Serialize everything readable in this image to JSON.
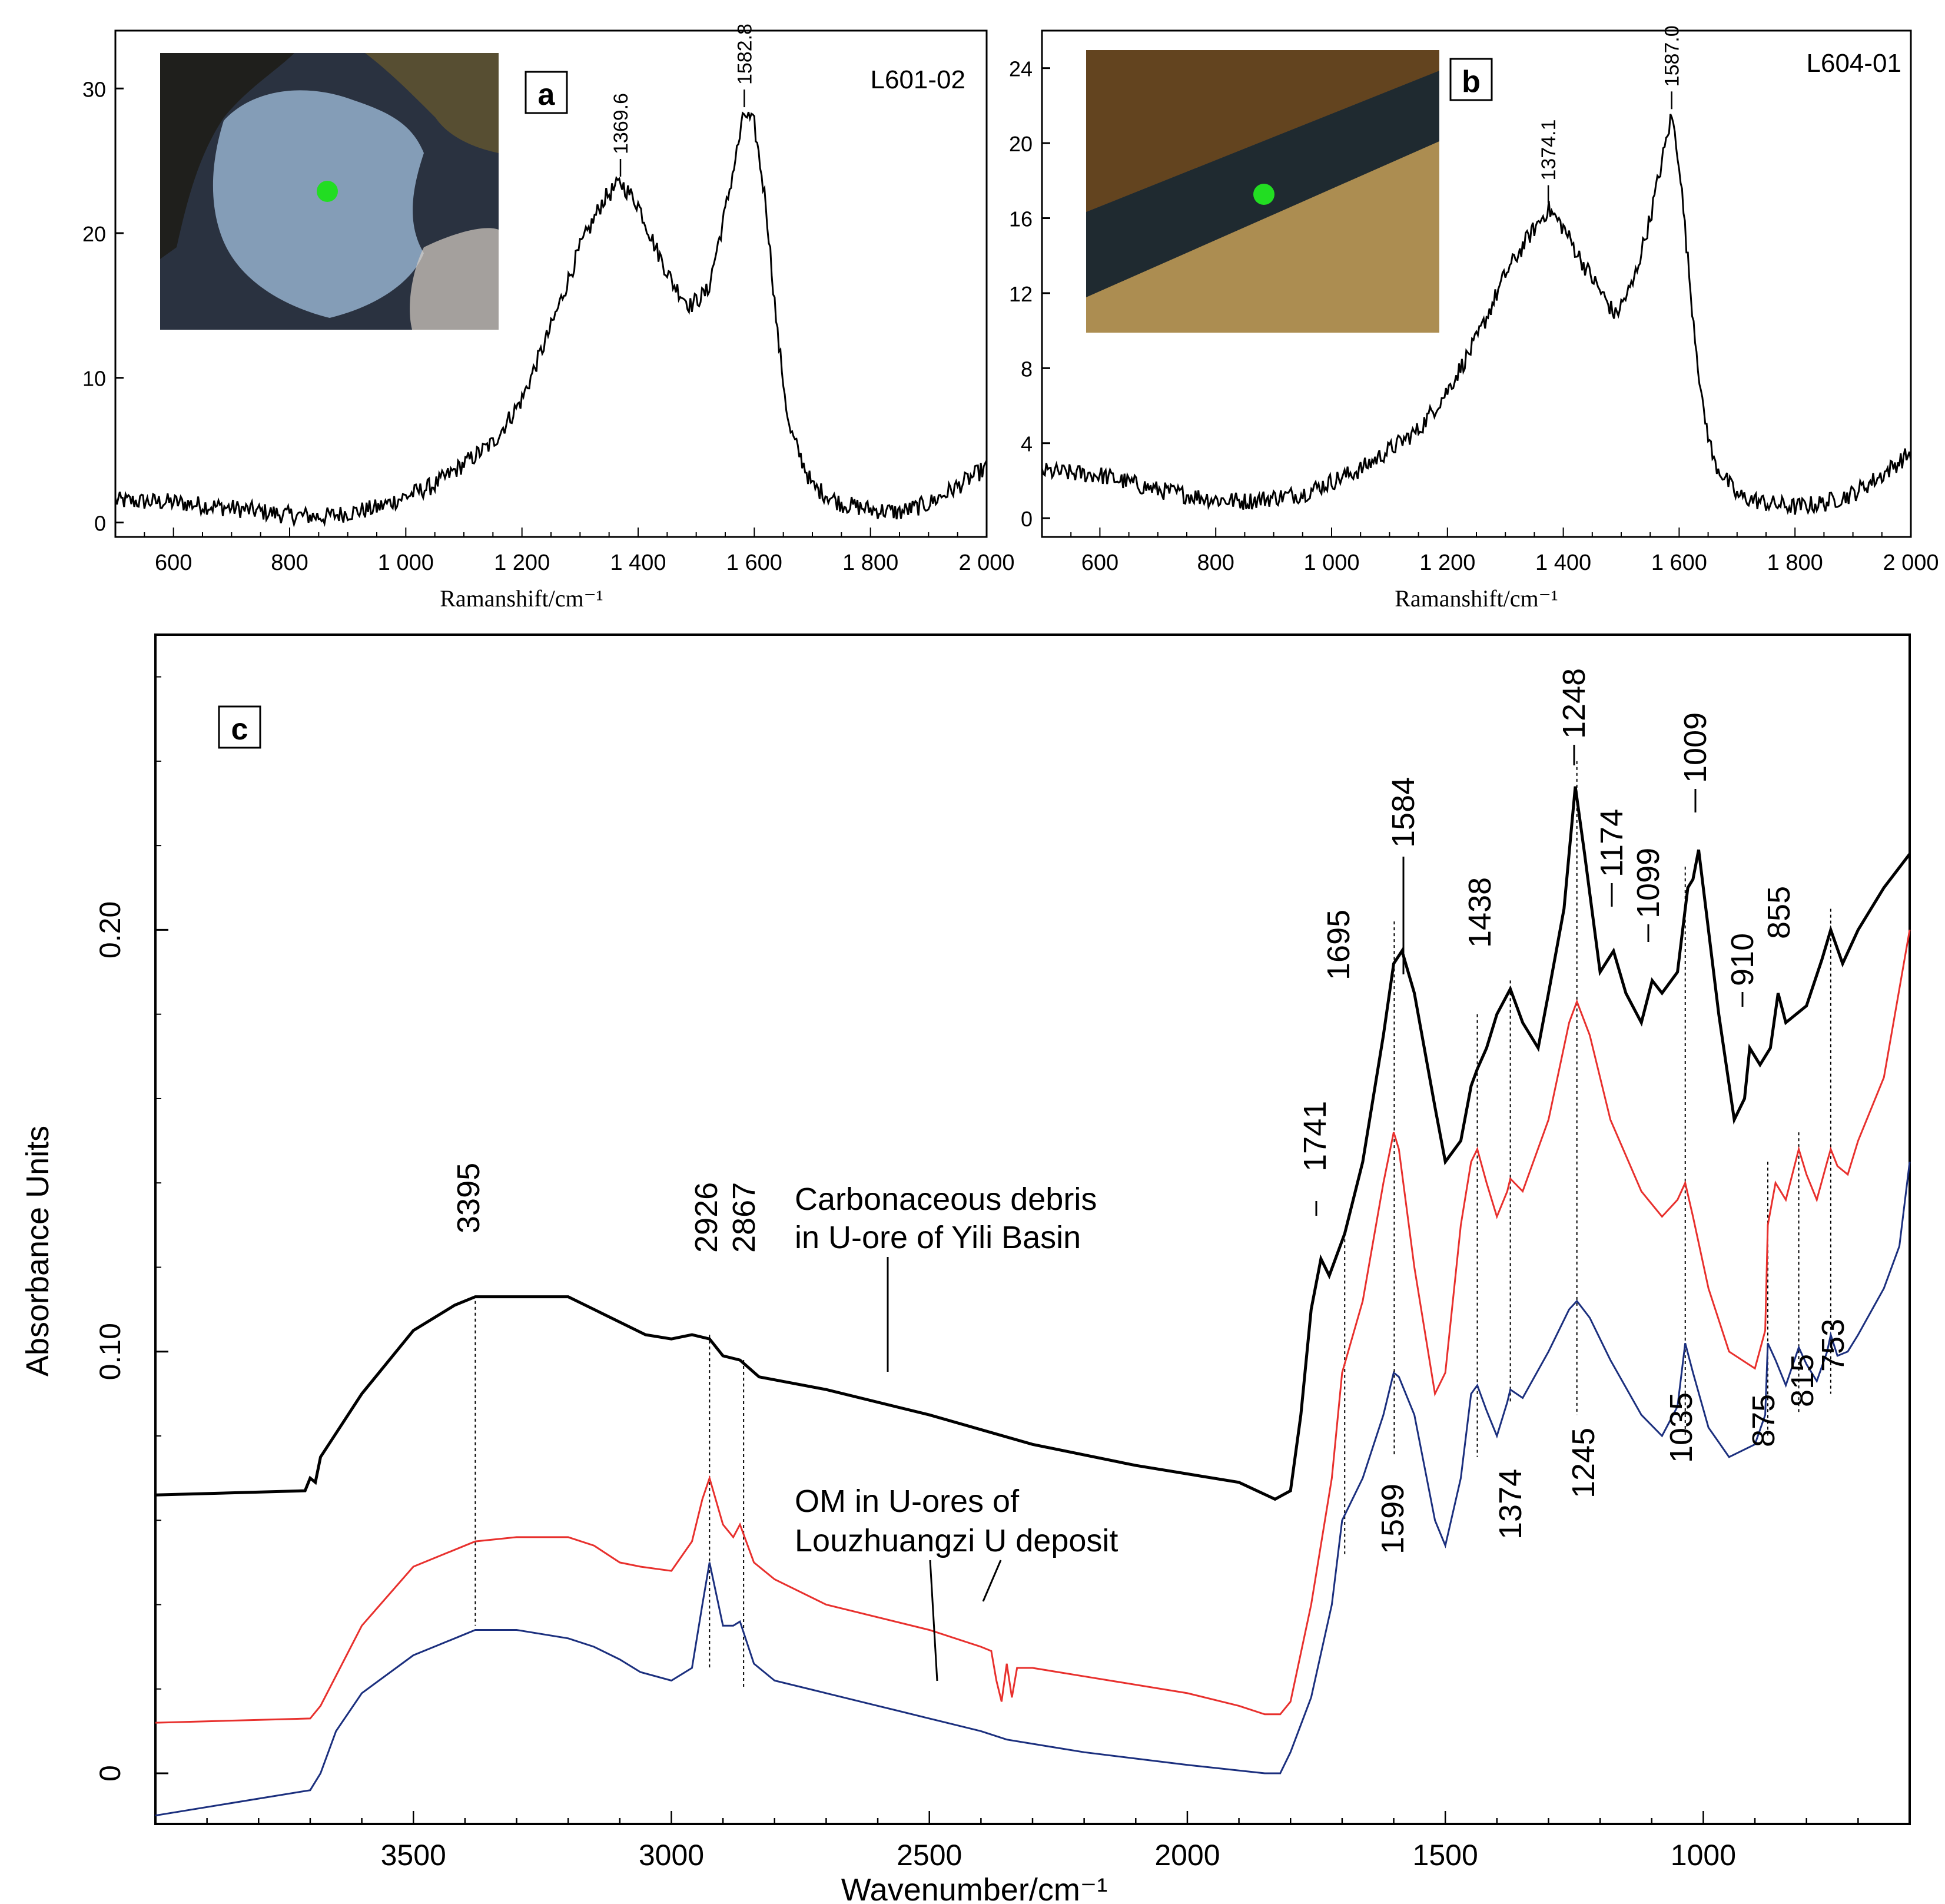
{
  "chart_data": [
    {
      "id": "a",
      "type": "line",
      "panel_label": "a",
      "sample_label": "L601-02",
      "xlabel": "Ramanshift/cm⁻¹",
      "ylabel": "",
      "xlim": [
        500,
        2000
      ],
      "ylim": [
        -1,
        34
      ],
      "x_ticks": [
        600,
        800,
        1000,
        1200,
        1400,
        1600,
        1800,
        2000
      ],
      "x_tick_labels": [
        "600",
        "800",
        "1 000",
        "1 200",
        "1 400",
        "1 600",
        "1 800",
        "2 000"
      ],
      "y_ticks": [
        0,
        10,
        20,
        30
      ],
      "y_tick_labels": [
        "0",
        "10",
        "20",
        "30"
      ],
      "peak_labels": [
        {
          "x": 1369.6,
          "y": 23.5,
          "text": "1369.6"
        },
        {
          "x": 1582.8,
          "y": 28.3,
          "text": "1582.8"
        }
      ],
      "series": [
        {
          "name": "L601-02 Raman spectrum",
          "x": [
            500,
            600,
            700,
            800,
            860,
            950,
            1050,
            1150,
            1200,
            1250,
            1300,
            1340,
            1369.6,
            1400,
            1430,
            1460,
            1490,
            1520,
            1550,
            1582.8,
            1600,
            1620,
            1640,
            1660,
            1700,
            1750,
            1800,
            1850,
            1900,
            1950,
            2000
          ],
          "y": [
            1.5,
            1.4,
            1.0,
            0.5,
            0.4,
            1.0,
            2.6,
            5.5,
            8.5,
            13.5,
            19.0,
            22.3,
            23.5,
            22.0,
            19.0,
            16.5,
            15.0,
            16.0,
            21.5,
            28.3,
            27.5,
            22.0,
            13.0,
            6.5,
            2.5,
            1.3,
            0.9,
            0.7,
            1.3,
            2.5,
            3.8
          ]
        }
      ]
    },
    {
      "id": "b",
      "type": "line",
      "panel_label": "b",
      "sample_label": "L604-01",
      "xlabel": "Ramanshift/cm⁻¹",
      "ylabel": "",
      "xlim": [
        500,
        2000
      ],
      "ylim": [
        -1,
        26
      ],
      "x_ticks": [
        600,
        800,
        1000,
        1200,
        1400,
        1600,
        1800,
        2000
      ],
      "x_tick_labels": [
        "600",
        "800",
        "1 000",
        "1 200",
        "1 400",
        "1 600",
        "1 800",
        "2 000"
      ],
      "y_ticks": [
        0,
        4,
        8,
        12,
        16,
        20,
        24
      ],
      "y_tick_labels": [
        "0",
        "4",
        "8",
        "12",
        "16",
        "20",
        "24"
      ],
      "peak_labels": [
        {
          "x": 1374.1,
          "y": 16.5,
          "text": "1374.1"
        },
        {
          "x": 1587.0,
          "y": 21.5,
          "text": "1587.0"
        }
      ],
      "series": [
        {
          "name": "L604-01 Raman spectrum",
          "x": [
            500,
            600,
            700,
            800,
            850,
            950,
            1050,
            1150,
            1200,
            1250,
            1300,
            1340,
            1374.1,
            1400,
            1430,
            1460,
            1490,
            1520,
            1550,
            1587,
            1600,
            1620,
            1640,
            1660,
            1700,
            1750,
            1800,
            1850,
            1900,
            1950,
            2000
          ],
          "y": [
            2.5,
            2.3,
            1.5,
            1.0,
            0.9,
            1.3,
            2.6,
            4.7,
            6.8,
            9.5,
            13.0,
            15.0,
            16.5,
            15.5,
            13.8,
            12.3,
            10.8,
            12.5,
            16.0,
            21.5,
            19.0,
            12.0,
            6.0,
            3.0,
            1.2,
            0.8,
            0.6,
            0.8,
            1.3,
            2.3,
            3.5
          ]
        }
      ]
    },
    {
      "id": "c",
      "type": "line",
      "panel_label": "c",
      "xlabel": "Wavenumber/cm⁻¹",
      "ylabel": "Absorbance Units",
      "xlim": [
        4000,
        600
      ],
      "ylim": [
        -0.012,
        0.27
      ],
      "x_ticks": [
        3500,
        3000,
        2500,
        2000,
        1500,
        1000
      ],
      "x_tick_labels": [
        "3500",
        "3000",
        "2500",
        "2000",
        "1500",
        "1000"
      ],
      "y_ticks": [
        0,
        0.1,
        0.2
      ],
      "y_tick_labels": [
        "0",
        "0.10",
        "0.20"
      ],
      "annotations": {
        "carbonaceous_line1": "Carbonaceous debris",
        "carbonaceous_line2": "in U-ore of Yili Basin",
        "om_line1": "OM in U-ores of",
        "om_line2": "Louzhuangzi U deposit"
      },
      "top_peak_labels": [
        "3395",
        "2926",
        "2867",
        "1741",
        "1695",
        "1584",
        "1438",
        "1248",
        "1174",
        "1099",
        "1009",
        "910",
        "855"
      ],
      "bottom_peak_labels": [
        "1599",
        "1374",
        "1245",
        "1035",
        "875",
        "815",
        "753"
      ],
      "dashed_lines_x": [
        3380,
        2926,
        2860,
        1695,
        1599,
        1438,
        1374,
        1245,
        1035,
        875,
        815,
        753
      ],
      "series": [
        {
          "name": "Carbonaceous debris in U-ore of Yili Basin",
          "color": "#000000",
          "x": [
            4000,
            3710,
            3700,
            3690,
            3680,
            3600,
            3500,
            3420,
            3380,
            3300,
            3200,
            3100,
            3050,
            3000,
            2960,
            2926,
            2900,
            2867,
            2830,
            2700,
            2500,
            2300,
            2100,
            1900,
            1830,
            1800,
            1780,
            1760,
            1741,
            1725,
            1695,
            1660,
            1620,
            1600,
            1584,
            1560,
            1520,
            1500,
            1470,
            1450,
            1438,
            1420,
            1400,
            1374,
            1350,
            1320,
            1300,
            1270,
            1248,
            1230,
            1200,
            1174,
            1150,
            1120,
            1099,
            1080,
            1050,
            1030,
            1020,
            1009,
            995,
            970,
            940,
            920,
            910,
            890,
            870,
            855,
            840,
            800,
            770,
            753,
            730,
            700,
            650,
            600
          ],
          "y": [
            0.066,
            0.067,
            0.07,
            0.069,
            0.075,
            0.09,
            0.105,
            0.111,
            0.113,
            0.113,
            0.113,
            0.107,
            0.104,
            0.103,
            0.104,
            0.103,
            0.099,
            0.098,
            0.094,
            0.091,
            0.085,
            0.078,
            0.073,
            0.069,
            0.065,
            0.067,
            0.085,
            0.11,
            0.122,
            0.118,
            0.128,
            0.145,
            0.175,
            0.192,
            0.195,
            0.185,
            0.158,
            0.145,
            0.15,
            0.163,
            0.167,
            0.172,
            0.18,
            0.186,
            0.178,
            0.172,
            0.185,
            0.205,
            0.234,
            0.218,
            0.19,
            0.195,
            0.185,
            0.178,
            0.188,
            0.185,
            0.19,
            0.21,
            0.212,
            0.219,
            0.205,
            0.18,
            0.155,
            0.16,
            0.172,
            0.168,
            0.172,
            0.185,
            0.178,
            0.182,
            0.193,
            0.2,
            0.192,
            0.2,
            0.21,
            0.218
          ]
        },
        {
          "name": "OM in U-ores of Louzhuangzi U deposit (red)",
          "color": "#e8302d",
          "x": [
            4000,
            3700,
            3680,
            3600,
            3500,
            3400,
            3380,
            3300,
            3200,
            3150,
            3100,
            3060,
            3000,
            2960,
            2940,
            2926,
            2900,
            2880,
            2867,
            2840,
            2800,
            2700,
            2500,
            2400,
            2380,
            2370,
            2360,
            2350,
            2340,
            2330,
            2300,
            2200,
            2000,
            1900,
            1850,
            1820,
            1800,
            1760,
            1720,
            1700,
            1660,
            1620,
            1600,
            1590,
            1560,
            1520,
            1500,
            1470,
            1450,
            1438,
            1420,
            1400,
            1380,
            1374,
            1350,
            1300,
            1260,
            1245,
            1220,
            1180,
            1120,
            1080,
            1050,
            1035,
            1020,
            990,
            950,
            900,
            880,
            875,
            860,
            840,
            815,
            800,
            780,
            760,
            753,
            740,
            720,
            700,
            650,
            600
          ],
          "y": [
            0.012,
            0.013,
            0.016,
            0.035,
            0.049,
            0.054,
            0.055,
            0.056,
            0.056,
            0.054,
            0.05,
            0.049,
            0.048,
            0.055,
            0.065,
            0.07,
            0.059,
            0.056,
            0.059,
            0.05,
            0.046,
            0.04,
            0.034,
            0.03,
            0.029,
            0.022,
            0.017,
            0.026,
            0.018,
            0.025,
            0.025,
            0.023,
            0.019,
            0.016,
            0.014,
            0.014,
            0.017,
            0.04,
            0.07,
            0.095,
            0.112,
            0.14,
            0.152,
            0.148,
            0.12,
            0.09,
            0.095,
            0.13,
            0.145,
            0.148,
            0.14,
            0.132,
            0.138,
            0.141,
            0.138,
            0.155,
            0.178,
            0.183,
            0.175,
            0.155,
            0.138,
            0.132,
            0.136,
            0.14,
            0.132,
            0.115,
            0.1,
            0.096,
            0.105,
            0.13,
            0.14,
            0.136,
            0.148,
            0.142,
            0.136,
            0.145,
            0.148,
            0.144,
            0.142,
            0.15,
            0.165,
            0.2
          ]
        },
        {
          "name": "OM in U-ores of Louzhuangzi U deposit (blue)",
          "color": "#1b2f7e",
          "x": [
            4000,
            3800,
            3700,
            3680,
            3650,
            3600,
            3500,
            3400,
            3380,
            3300,
            3200,
            3150,
            3100,
            3060,
            3000,
            2960,
            2940,
            2926,
            2900,
            2880,
            2867,
            2840,
            2800,
            2700,
            2600,
            2500,
            2400,
            2350,
            2300,
            2200,
            2000,
            1850,
            1820,
            1800,
            1760,
            1720,
            1700,
            1660,
            1620,
            1600,
            1590,
            1560,
            1520,
            1500,
            1470,
            1450,
            1438,
            1420,
            1400,
            1380,
            1374,
            1350,
            1300,
            1260,
            1245,
            1220,
            1180,
            1120,
            1080,
            1050,
            1035,
            1020,
            990,
            950,
            900,
            880,
            875,
            860,
            840,
            815,
            800,
            780,
            760,
            753,
            740,
            720,
            700,
            650,
            620,
            600
          ],
          "y": [
            -0.01,
            -0.006,
            -0.004,
            0.0,
            0.01,
            0.019,
            0.028,
            0.033,
            0.034,
            0.034,
            0.032,
            0.03,
            0.027,
            0.024,
            0.022,
            0.025,
            0.04,
            0.05,
            0.035,
            0.035,
            0.036,
            0.026,
            0.022,
            0.019,
            0.016,
            0.013,
            0.01,
            0.008,
            0.007,
            0.005,
            0.002,
            0.0,
            0.0,
            0.005,
            0.018,
            0.04,
            0.06,
            0.07,
            0.085,
            0.095,
            0.094,
            0.085,
            0.06,
            0.054,
            0.07,
            0.09,
            0.092,
            0.086,
            0.08,
            0.088,
            0.091,
            0.089,
            0.1,
            0.11,
            0.112,
            0.108,
            0.098,
            0.085,
            0.08,
            0.087,
            0.102,
            0.095,
            0.082,
            0.075,
            0.078,
            0.085,
            0.102,
            0.098,
            0.092,
            0.101,
            0.097,
            0.093,
            0.1,
            0.104,
            0.099,
            0.1,
            0.104,
            0.115,
            0.125,
            0.145
          ]
        }
      ]
    }
  ],
  "colors": {
    "axis": "#000000",
    "red_series": "#e8302d",
    "blue_series": "#1b2f7e",
    "inset_marker": "#22dd22"
  }
}
